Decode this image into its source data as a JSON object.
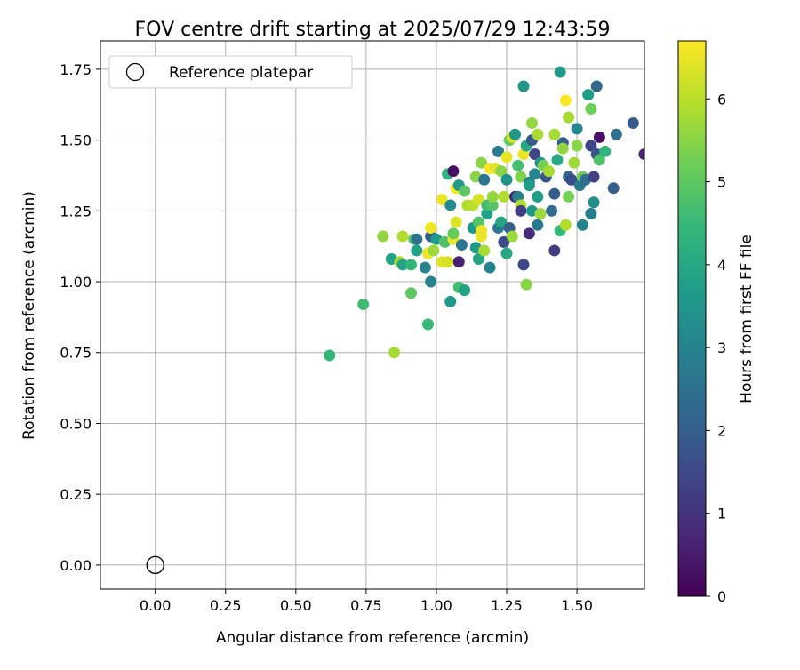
{
  "chart_data": {
    "type": "scatter",
    "title": "FOV centre drift starting at 2025/07/29 12:43:59",
    "xlabel": "Angular distance from reference (arcmin)",
    "ylabel": "Rotation from reference (arcmin)",
    "xlim": [
      -0.195,
      1.74
    ],
    "ylim": [
      -0.085,
      1.85
    ],
    "xticks": [
      "0.00",
      "0.25",
      "0.50",
      "0.75",
      "1.00",
      "1.25",
      "1.50"
    ],
    "yticks": [
      "0.00",
      "0.25",
      "0.50",
      "0.75",
      "1.00",
      "1.25",
      "1.50",
      "1.75"
    ],
    "grid": true,
    "legend": {
      "placement": "upper-left",
      "entries": [
        {
          "label": "Reference platepar",
          "marker": "hollow-circle",
          "x": 0,
          "y": 0
        }
      ]
    },
    "colorbar": {
      "label": "Hours from first FF file",
      "range": [
        0,
        6.7
      ],
      "ticks": [
        "0",
        "1",
        "2",
        "3",
        "4",
        "5",
        "6"
      ],
      "colormap": [
        "#440154",
        "#482878",
        "#3e4989",
        "#31688e",
        "#26828e",
        "#1f9e89",
        "#35b779",
        "#6ece58",
        "#b5de2b",
        "#fde725"
      ]
    },
    "points": [
      [
        0.62,
        0.74,
        4.4
      ],
      [
        0.74,
        0.92,
        4.6
      ],
      [
        0.81,
        1.16,
        5.6
      ],
      [
        0.84,
        1.08,
        3.8
      ],
      [
        0.85,
        0.75,
        5.8
      ],
      [
        0.87,
        1.07,
        5.8
      ],
      [
        0.88,
        1.06,
        3.9
      ],
      [
        0.88,
        1.16,
        5.9
      ],
      [
        0.91,
        1.06,
        4.4
      ],
      [
        0.91,
        0.96,
        5.0
      ],
      [
        0.92,
        1.15,
        5.0
      ],
      [
        0.93,
        1.15,
        2.5
      ],
      [
        0.93,
        1.11,
        3.8
      ],
      [
        0.96,
        1.05,
        3.0
      ],
      [
        0.97,
        0.85,
        4.5
      ],
      [
        0.97,
        1.1,
        6.5
      ],
      [
        0.98,
        1.16,
        2.0
      ],
      [
        0.98,
        1.0,
        3.0
      ],
      [
        0.98,
        1.19,
        6.6
      ],
      [
        0.99,
        1.11,
        5.7
      ],
      [
        1.0,
        1.15,
        3.6
      ],
      [
        1.02,
        1.29,
        6.5
      ],
      [
        1.02,
        1.07,
        6.4
      ],
      [
        1.03,
        1.14,
        4.8
      ],
      [
        1.04,
        1.38,
        4.3
      ],
      [
        1.04,
        1.07,
        6.3
      ],
      [
        1.05,
        0.93,
        3.6
      ],
      [
        1.05,
        1.27,
        3.2
      ],
      [
        1.06,
        1.39,
        0.3
      ],
      [
        1.06,
        1.15,
        6.5
      ],
      [
        1.06,
        1.17,
        5.1
      ],
      [
        1.07,
        1.33,
        6.7
      ],
      [
        1.07,
        1.21,
        6.4
      ],
      [
        1.08,
        1.07,
        0.6
      ],
      [
        1.08,
        0.98,
        4.7
      ],
      [
        1.08,
        1.34,
        3.6
      ],
      [
        1.09,
        1.13,
        2.6
      ],
      [
        1.1,
        0.97,
        3.8
      ],
      [
        1.1,
        1.32,
        5.0
      ],
      [
        1.11,
        1.27,
        5.9
      ],
      [
        1.13,
        1.19,
        3.5
      ],
      [
        1.13,
        1.27,
        6.0
      ],
      [
        1.14,
        1.12,
        3.6
      ],
      [
        1.14,
        1.37,
        5.5
      ],
      [
        1.15,
        1.08,
        3.9
      ],
      [
        1.15,
        1.21,
        4.9
      ],
      [
        1.15,
        1.29,
        6.3
      ],
      [
        1.16,
        1.42,
        5.5
      ],
      [
        1.16,
        1.18,
        6.5
      ],
      [
        1.16,
        1.16,
        6.5
      ],
      [
        1.17,
        1.36,
        2.6
      ],
      [
        1.17,
        1.11,
        5.8
      ],
      [
        1.18,
        1.24,
        3.8
      ],
      [
        1.18,
        1.27,
        4.6
      ],
      [
        1.19,
        1.4,
        6.7
      ],
      [
        1.19,
        1.05,
        3.0
      ],
      [
        1.2,
        1.27,
        4.9
      ],
      [
        1.2,
        1.3,
        5.6
      ],
      [
        1.21,
        1.4,
        6.4
      ],
      [
        1.22,
        1.46,
        2.8
      ],
      [
        1.22,
        1.19,
        2.7
      ],
      [
        1.23,
        1.39,
        5.5
      ],
      [
        1.23,
        1.21,
        3.9
      ],
      [
        1.24,
        1.14,
        1.5
      ],
      [
        1.24,
        1.3,
        5.9
      ],
      [
        1.25,
        1.1,
        4.0
      ],
      [
        1.25,
        1.36,
        3.4
      ],
      [
        1.25,
        1.44,
        6.5
      ],
      [
        1.26,
        1.5,
        5.1
      ],
      [
        1.26,
        1.19,
        2.0
      ],
      [
        1.27,
        1.51,
        6.3
      ],
      [
        1.27,
        1.16,
        5.7
      ],
      [
        1.28,
        1.3,
        0.7
      ],
      [
        1.28,
        1.52,
        3.5
      ],
      [
        1.29,
        1.41,
        4.7
      ],
      [
        1.29,
        1.3,
        2.9
      ],
      [
        1.3,
        1.37,
        5.4
      ],
      [
        1.3,
        1.27,
        5.9
      ],
      [
        1.3,
        1.25,
        1.2
      ],
      [
        1.31,
        1.06,
        1.5
      ],
      [
        1.31,
        1.69,
        3.5
      ],
      [
        1.31,
        1.45,
        6.5
      ],
      [
        1.32,
        1.48,
        4.0
      ],
      [
        1.32,
        0.99,
        5.5
      ],
      [
        1.33,
        1.17,
        0.8
      ],
      [
        1.33,
        1.35,
        2.7
      ],
      [
        1.33,
        1.34,
        3.7
      ],
      [
        1.34,
        1.56,
        5.6
      ],
      [
        1.34,
        1.5,
        1.9
      ],
      [
        1.34,
        1.25,
        3.5
      ],
      [
        1.35,
        1.45,
        1.4
      ],
      [
        1.35,
        1.38,
        3.1
      ],
      [
        1.36,
        1.3,
        3.7
      ],
      [
        1.36,
        1.2,
        2.7
      ],
      [
        1.36,
        1.52,
        5.8
      ],
      [
        1.37,
        1.42,
        3.4
      ],
      [
        1.37,
        1.24,
        5.7
      ],
      [
        1.38,
        1.41,
        5.3
      ],
      [
        1.39,
        1.37,
        1.8
      ],
      [
        1.4,
        1.39,
        5.8
      ],
      [
        1.41,
        1.25,
        2.3
      ],
      [
        1.42,
        1.11,
        1.2
      ],
      [
        1.42,
        1.31,
        2.0
      ],
      [
        1.42,
        1.52,
        5.8
      ],
      [
        1.43,
        1.43,
        4.0
      ],
      [
        1.44,
        1.74,
        3.6
      ],
      [
        1.44,
        1.18,
        4.5
      ],
      [
        1.45,
        1.49,
        2.0
      ],
      [
        1.45,
        1.47,
        5.6
      ],
      [
        1.46,
        1.2,
        5.9
      ],
      [
        1.46,
        1.64,
        6.7
      ],
      [
        1.47,
        1.37,
        2.2
      ],
      [
        1.47,
        1.3,
        5.3
      ],
      [
        1.47,
        1.58,
        5.8
      ],
      [
        1.48,
        1.36,
        1.6
      ],
      [
        1.49,
        1.42,
        5.7
      ],
      [
        1.5,
        1.48,
        5.5
      ],
      [
        1.5,
        1.54,
        3.1
      ],
      [
        1.51,
        1.34,
        2.7
      ],
      [
        1.52,
        1.37,
        5.2
      ],
      [
        1.52,
        1.2,
        3.0
      ],
      [
        1.53,
        1.36,
        2.4
      ],
      [
        1.54,
        1.66,
        3.7
      ],
      [
        1.55,
        1.61,
        5.2
      ],
      [
        1.55,
        1.48,
        1.4
      ],
      [
        1.55,
        1.24,
        2.9
      ],
      [
        1.56,
        1.37,
        1.3
      ],
      [
        1.56,
        1.28,
        3.3
      ],
      [
        1.57,
        1.45,
        1.8
      ],
      [
        1.57,
        1.69,
        2.2
      ],
      [
        1.58,
        1.51,
        0.3
      ],
      [
        1.58,
        1.43,
        4.8
      ],
      [
        1.6,
        1.46,
        4.4
      ],
      [
        1.63,
        1.33,
        2.0
      ],
      [
        1.64,
        1.52,
        2.5
      ],
      [
        1.7,
        1.56,
        1.9
      ],
      [
        1.74,
        1.45,
        0.6
      ]
    ]
  }
}
